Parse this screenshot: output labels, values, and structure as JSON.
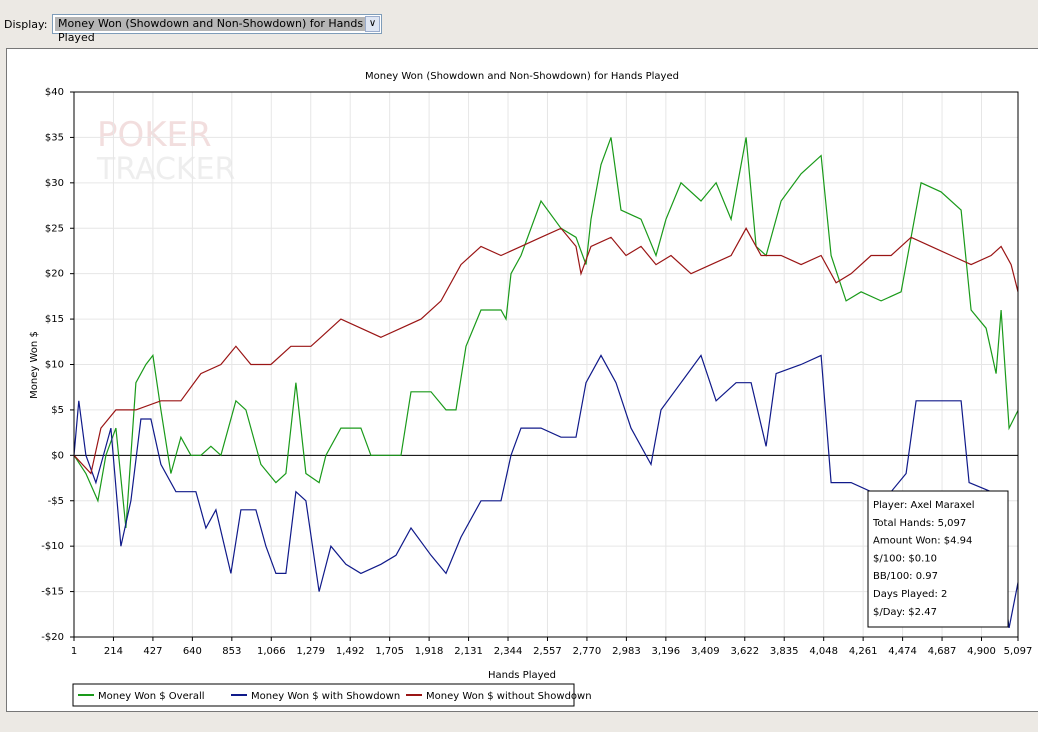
{
  "toolbar": {
    "display_label": "Display:",
    "display_value": "Money Won (Showdown and Non-Showdown) for Hands Played"
  },
  "watermark": "POKER TRACKER 3",
  "tooltip": [
    "Player: Axel Maraxel",
    "Total Hands: 5,097",
    "Amount Won: $4.94",
    "$/100: $0.10",
    "BB/100: 0.97",
    "Days Played: 2",
    "$/Day: $2.47"
  ],
  "chart_data": {
    "type": "line",
    "title": "Money Won (Showdown and Non-Showdown) for Hands Played",
    "xlabel": "Hands Played",
    "ylabel": "Money Won $",
    "xlim": [
      1,
      5097
    ],
    "ylim": [
      -20,
      40
    ],
    "xticks": [
      1,
      214,
      427,
      640,
      853,
      1066,
      1279,
      1492,
      1705,
      1918,
      2131,
      2344,
      2557,
      2770,
      2983,
      3196,
      3409,
      3622,
      3835,
      4048,
      4261,
      4474,
      4687,
      4900,
      5097
    ],
    "xtick_labels": [
      "1",
      "214",
      "427",
      "640",
      "853",
      "1,066",
      "1,279",
      "1,492",
      "1,705",
      "1,918",
      "2,131",
      "2,344",
      "2,557",
      "2,770",
      "2,983",
      "3,196",
      "3,409",
      "3,622",
      "3,835",
      "4,048",
      "4,261",
      "4,474",
      "4,687",
      "4,900",
      "5,097"
    ],
    "yticks": [
      40,
      35,
      30,
      25,
      20,
      15,
      10,
      5,
      0,
      -5,
      -10,
      -15,
      -20
    ],
    "ytick_labels": [
      "$40",
      "$35",
      "$30",
      "$25",
      "$20",
      "$15",
      "$10",
      "$5",
      "$0",
      "-$5",
      "-$10",
      "-$15",
      "-$20"
    ],
    "grid": true,
    "legend_position": "bottom-left",
    "series": [
      {
        "name": "Money Won $ Overall",
        "color": "#1a9a1a",
        "points": [
          [
            1,
            0
          ],
          [
            65,
            -2
          ],
          [
            130,
            -5
          ],
          [
            173,
            0
          ],
          [
            227,
            3
          ],
          [
            281,
            -8
          ],
          [
            335,
            8
          ],
          [
            389,
            10
          ],
          [
            427,
            11
          ],
          [
            470,
            5
          ],
          [
            524,
            -2
          ],
          [
            578,
            2
          ],
          [
            632,
            0
          ],
          [
            686,
            0
          ],
          [
            740,
            1
          ],
          [
            794,
            0
          ],
          [
            875,
            6
          ],
          [
            929,
            5
          ],
          [
            1010,
            -1
          ],
          [
            1091,
            -3
          ],
          [
            1145,
            -2
          ],
          [
            1199,
            8
          ],
          [
            1253,
            -2
          ],
          [
            1324,
            -3
          ],
          [
            1361,
            0
          ],
          [
            1442,
            3
          ],
          [
            1550,
            3
          ],
          [
            1604,
            0
          ],
          [
            1685,
            0
          ],
          [
            1766,
            0
          ],
          [
            1820,
            7
          ],
          [
            1928,
            7
          ],
          [
            2009,
            5
          ],
          [
            2063,
            5
          ],
          [
            2117,
            12
          ],
          [
            2198,
            16
          ],
          [
            2306,
            16
          ],
          [
            2333,
            15
          ],
          [
            2360,
            20
          ],
          [
            2414,
            22
          ],
          [
            2522,
            28
          ],
          [
            2630,
            25
          ],
          [
            2711,
            24
          ],
          [
            2765,
            21
          ],
          [
            2792,
            26
          ],
          [
            2846,
            32
          ],
          [
            2900,
            35
          ],
          [
            2954,
            27
          ],
          [
            3062,
            26
          ],
          [
            3143,
            22
          ],
          [
            3197,
            26
          ],
          [
            3278,
            30
          ],
          [
            3386,
            28
          ],
          [
            3467,
            30
          ],
          [
            3548,
            26
          ],
          [
            3629,
            35
          ],
          [
            3683,
            23
          ],
          [
            3737,
            22
          ],
          [
            3818,
            28
          ],
          [
            3926,
            31
          ],
          [
            4034,
            33
          ],
          [
            4088,
            22
          ],
          [
            4169,
            17
          ],
          [
            4250,
            18
          ],
          [
            4358,
            17
          ],
          [
            4466,
            18
          ],
          [
            4574,
            30
          ],
          [
            4682,
            29
          ],
          [
            4790,
            27
          ],
          [
            4844,
            16
          ],
          [
            4925,
            14
          ],
          [
            4979,
            9
          ],
          [
            5006,
            16
          ],
          [
            5049,
            3
          ],
          [
            5097,
            4.94
          ]
        ]
      },
      {
        "name": "Money Won $ with Showdown",
        "color": "#101a8a",
        "points": [
          [
            1,
            0
          ],
          [
            27,
            6
          ],
          [
            65,
            0
          ],
          [
            119,
            -3
          ],
          [
            200,
            3
          ],
          [
            254,
            -10
          ],
          [
            308,
            -5
          ],
          [
            362,
            4
          ],
          [
            416,
            4
          ],
          [
            470,
            -1
          ],
          [
            551,
            -4
          ],
          [
            659,
            -4
          ],
          [
            713,
            -8
          ],
          [
            767,
            -6
          ],
          [
            848,
            -13
          ],
          [
            902,
            -6
          ],
          [
            983,
            -6
          ],
          [
            1037,
            -10
          ],
          [
            1091,
            -13
          ],
          [
            1145,
            -13
          ],
          [
            1199,
            -4
          ],
          [
            1253,
            -5
          ],
          [
            1324,
            -15
          ],
          [
            1388,
            -10
          ],
          [
            1469,
            -12
          ],
          [
            1550,
            -13
          ],
          [
            1658,
            -12
          ],
          [
            1739,
            -11
          ],
          [
            1820,
            -8
          ],
          [
            1928,
            -11
          ],
          [
            2009,
            -13
          ],
          [
            2090,
            -9
          ],
          [
            2198,
            -5
          ],
          [
            2306,
            -5
          ],
          [
            2360,
            0
          ],
          [
            2414,
            3
          ],
          [
            2522,
            3
          ],
          [
            2630,
            2
          ],
          [
            2711,
            2
          ],
          [
            2765,
            8
          ],
          [
            2846,
            11
          ],
          [
            2927,
            8
          ],
          [
            3008,
            3
          ],
          [
            3116,
            -1
          ],
          [
            3170,
            5
          ],
          [
            3278,
            8
          ],
          [
            3386,
            11
          ],
          [
            3467,
            6
          ],
          [
            3575,
            8
          ],
          [
            3656,
            8
          ],
          [
            3737,
            1
          ],
          [
            3791,
            9
          ],
          [
            3926,
            10
          ],
          [
            4034,
            11
          ],
          [
            4088,
            -3
          ],
          [
            4196,
            -3
          ],
          [
            4304,
            -4
          ],
          [
            4412,
            -4
          ],
          [
            4493,
            -2
          ],
          [
            4547,
            6
          ],
          [
            4682,
            6
          ],
          [
            4790,
            6
          ],
          [
            4833,
            -3
          ],
          [
            4952,
            -4
          ],
          [
            5049,
            -19
          ],
          [
            5097,
            -14
          ]
        ]
      },
      {
        "name": "Money Won $ without Showdown",
        "color": "#9a1515",
        "points": [
          [
            1,
            0
          ],
          [
            92,
            -2
          ],
          [
            146,
            3
          ],
          [
            227,
            5
          ],
          [
            335,
            5
          ],
          [
            470,
            6
          ],
          [
            578,
            6
          ],
          [
            686,
            9
          ],
          [
            794,
            10
          ],
          [
            875,
            12
          ],
          [
            956,
            10
          ],
          [
            1064,
            10
          ],
          [
            1172,
            12
          ],
          [
            1280,
            12
          ],
          [
            1334,
            13
          ],
          [
            1442,
            15
          ],
          [
            1550,
            14
          ],
          [
            1658,
            13
          ],
          [
            1766,
            14
          ],
          [
            1874,
            15
          ],
          [
            1982,
            17
          ],
          [
            2090,
            21
          ],
          [
            2198,
            23
          ],
          [
            2306,
            22
          ],
          [
            2414,
            23
          ],
          [
            2522,
            24
          ],
          [
            2630,
            25
          ],
          [
            2711,
            23
          ],
          [
            2738,
            20
          ],
          [
            2792,
            23
          ],
          [
            2900,
            24
          ],
          [
            2981,
            22
          ],
          [
            3062,
            23
          ],
          [
            3143,
            21
          ],
          [
            3224,
            22
          ],
          [
            3332,
            20
          ],
          [
            3440,
            21
          ],
          [
            3548,
            22
          ],
          [
            3629,
            25
          ],
          [
            3710,
            22
          ],
          [
            3818,
            22
          ],
          [
            3926,
            21
          ],
          [
            4034,
            22
          ],
          [
            4115,
            19
          ],
          [
            4196,
            20
          ],
          [
            4304,
            22
          ],
          [
            4412,
            22
          ],
          [
            4520,
            24
          ],
          [
            4628,
            23
          ],
          [
            4736,
            22
          ],
          [
            4844,
            21
          ],
          [
            4952,
            22
          ],
          [
            5006,
            23
          ],
          [
            5060,
            21
          ],
          [
            5097,
            18
          ]
        ]
      }
    ]
  }
}
